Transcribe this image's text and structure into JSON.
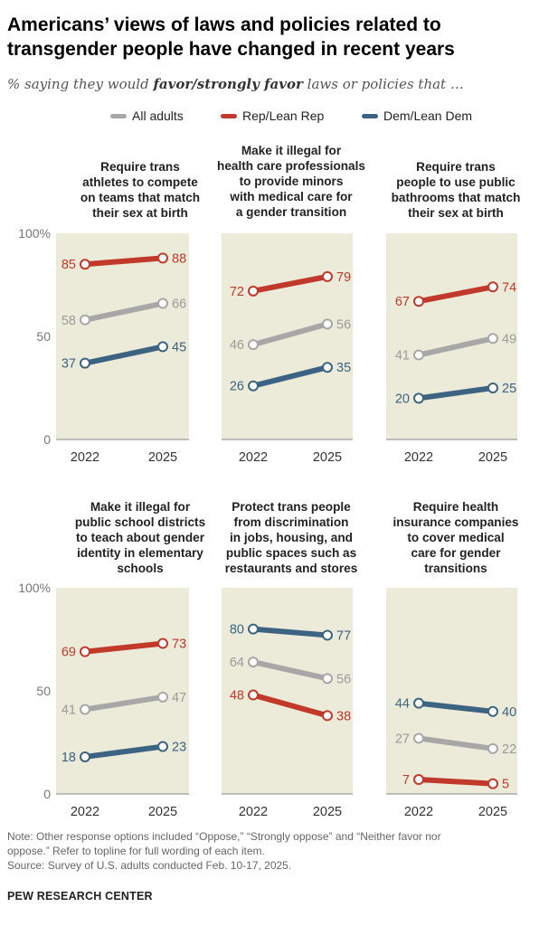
{
  "title": {
    "line1": "Americans’ views of laws and policies related to",
    "line2": "transgender people have changed in recent years"
  },
  "subtitle": {
    "prefix": "% saying they would ",
    "emphasis": "favor/strongly favor",
    "suffix": " laws or policies that …"
  },
  "legend": [
    {
      "name": "All adults",
      "color": "#a7a7a7"
    },
    {
      "name": "Rep/Lean Rep",
      "color": "#c0392b"
    },
    {
      "name": "Dem/Lean Dem",
      "color": "#3c6382"
    }
  ],
  "notes": {
    "line1": "Note: Other response options included “Oppose,” “Strongly oppose” and “Neither favor nor",
    "line2": "oppose.” Refer to topline for full wording of each item."
  },
  "source": "Source: Survey of U.S. adults conducted Feb. 10-17, 2025.",
  "brand": "PEW RESEARCH CENTER",
  "chart_data": [
    {
      "type": "line",
      "title_lines": [
        "Require trans",
        "athletes to compete",
        "on teams that match",
        "their sex at birth"
      ],
      "categories": [
        "2022",
        "2025"
      ],
      "ylim": [
        0,
        100
      ],
      "yticks": [
        "0",
        "50",
        "100%"
      ],
      "series": [
        {
          "name": "All adults",
          "values": [
            58,
            66
          ]
        },
        {
          "name": "Rep/Lean Rep",
          "values": [
            85,
            88
          ]
        },
        {
          "name": "Dem/Lean Dem",
          "values": [
            37,
            45
          ]
        }
      ]
    },
    {
      "type": "line",
      "title_lines": [
        "Make it illegal for",
        "health care professionals",
        "to provide minors",
        "with medical care for",
        "a gender transition"
      ],
      "categories": [
        "2022",
        "2025"
      ],
      "ylim": [
        0,
        100
      ],
      "series": [
        {
          "name": "All adults",
          "values": [
            46,
            56
          ]
        },
        {
          "name": "Rep/Lean Rep",
          "values": [
            72,
            79
          ]
        },
        {
          "name": "Dem/Lean Dem",
          "values": [
            26,
            35
          ]
        }
      ]
    },
    {
      "type": "line",
      "title_lines": [
        "Require trans",
        "people to use public",
        "bathrooms that match",
        "their sex at birth"
      ],
      "categories": [
        "2022",
        "2025"
      ],
      "ylim": [
        0,
        100
      ],
      "series": [
        {
          "name": "All adults",
          "values": [
            41,
            49
          ]
        },
        {
          "name": "Rep/Lean Rep",
          "values": [
            67,
            74
          ]
        },
        {
          "name": "Dem/Lean Dem",
          "values": [
            20,
            25
          ]
        }
      ]
    },
    {
      "type": "line",
      "title_lines": [
        "Make it illegal for",
        "public school districts",
        "to teach about gender",
        "identity in elementary",
        "schools"
      ],
      "categories": [
        "2022",
        "2025"
      ],
      "ylim": [
        0,
        100
      ],
      "yticks": [
        "0",
        "50",
        "100%"
      ],
      "series": [
        {
          "name": "All adults",
          "values": [
            41,
            47
          ]
        },
        {
          "name": "Rep/Lean Rep",
          "values": [
            69,
            73
          ]
        },
        {
          "name": "Dem/Lean Dem",
          "values": [
            18,
            23
          ]
        }
      ]
    },
    {
      "type": "line",
      "title_lines": [
        "Protect trans people",
        "from discrimination",
        "in jobs, housing, and",
        "public spaces such as",
        "restaurants and stores"
      ],
      "categories": [
        "2022",
        "2025"
      ],
      "ylim": [
        0,
        100
      ],
      "series": [
        {
          "name": "All adults",
          "values": [
            64,
            56
          ]
        },
        {
          "name": "Rep/Lean Rep",
          "values": [
            48,
            38
          ]
        },
        {
          "name": "Dem/Lean Dem",
          "values": [
            80,
            77
          ]
        }
      ]
    },
    {
      "type": "line",
      "title_lines": [
        "Require health",
        "insurance companies",
        "to cover medical",
        "care for gender",
        "transitions"
      ],
      "categories": [
        "2022",
        "2025"
      ],
      "ylim": [
        0,
        100
      ],
      "series": [
        {
          "name": "All adults",
          "values": [
            27,
            22
          ]
        },
        {
          "name": "Rep/Lean Rep",
          "values": [
            7,
            5
          ]
        },
        {
          "name": "Dem/Lean Dem",
          "values": [
            44,
            40
          ]
        }
      ]
    }
  ]
}
